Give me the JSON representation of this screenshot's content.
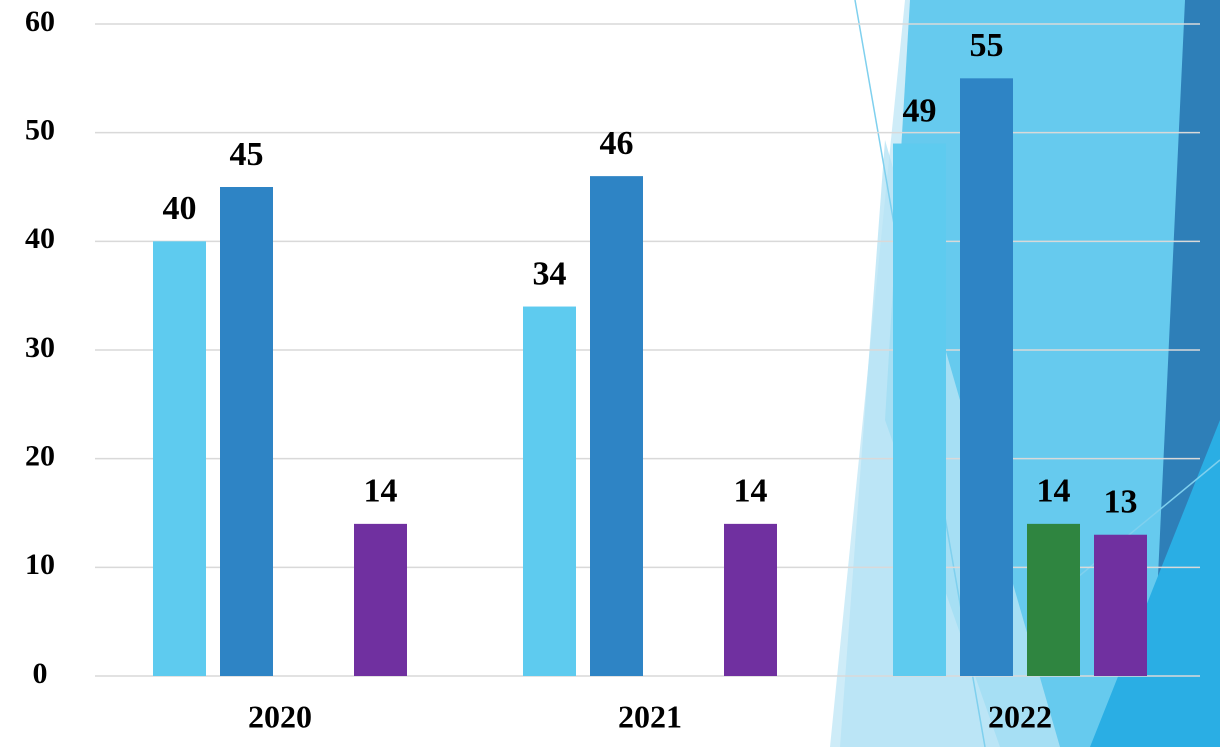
{
  "chart_data": {
    "type": "bar",
    "categories": [
      "2020",
      "2021",
      "2022"
    ],
    "series": [
      {
        "color": "#5ecbef",
        "values": [
          40,
          34,
          49
        ]
      },
      {
        "color": "#2e84c5",
        "values": [
          45,
          46,
          55
        ]
      },
      {
        "color": "#2f8540",
        "values": [
          null,
          null,
          14
        ]
      },
      {
        "color": "#7030a0",
        "values": [
          14,
          14,
          13
        ]
      }
    ],
    "ylim": [
      0,
      60
    ],
    "yticks": [
      0,
      10,
      20,
      30,
      40,
      50,
      60
    ],
    "grid": true
  }
}
